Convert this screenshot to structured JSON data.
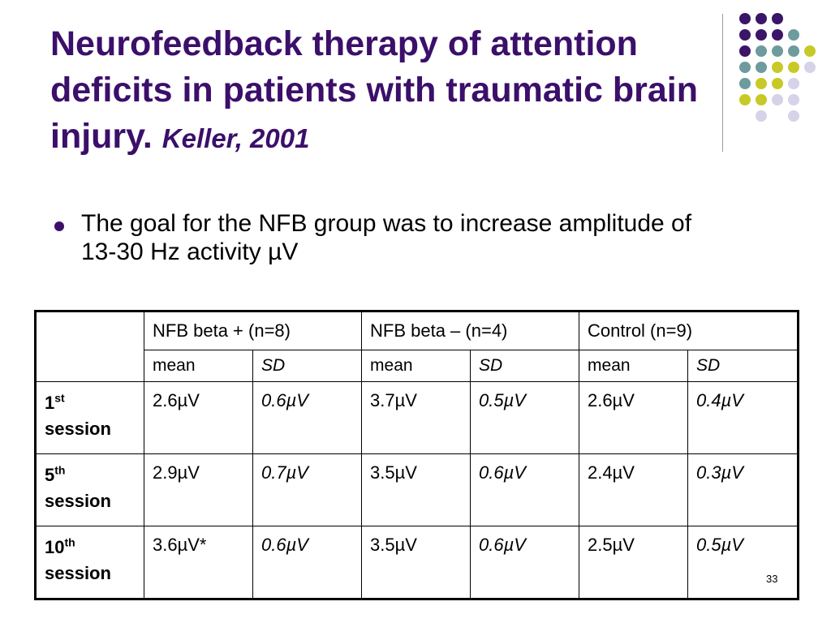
{
  "title": {
    "main": "Neurofeedback therapy of attention deficits in patients with traumatic brain injury.",
    "author": "Keller, 2001"
  },
  "bullet": "The goal for the NFB group was to increase amplitude of 13-30 Hz activity µV",
  "table": {
    "groups": [
      "NFB beta + (n=8)",
      "NFB beta – (n=4)",
      "Control (n=9)"
    ],
    "sub": [
      "mean",
      "SD",
      "mean",
      "SD",
      "mean",
      "SD"
    ],
    "rows": [
      {
        "num": "1",
        "sup": "st",
        "label": "session",
        "cells": [
          "2.6µV",
          "0.6µV",
          "3.7µV",
          "0.5µV",
          "2.6µV",
          "0.4µV"
        ]
      },
      {
        "num": "5",
        "sup": "th",
        "label": "session",
        "cells": [
          "2.9µV",
          "0.7µV",
          "3.5µV",
          "0.6µV",
          "2.4µV",
          "0.3µV"
        ]
      },
      {
        "num": "10",
        "sup": "th",
        "label": "session",
        "cells": [
          "3.6µV*",
          "0.6µV",
          "3.5µV",
          "0.6µV",
          "2.5µV",
          "0.5µV"
        ]
      }
    ]
  },
  "page_number": "33",
  "colors": {
    "purple": "#3b1567",
    "teal": "#6d9b9e",
    "olive": "#c7c927",
    "lavender": "#d4d3e8"
  }
}
